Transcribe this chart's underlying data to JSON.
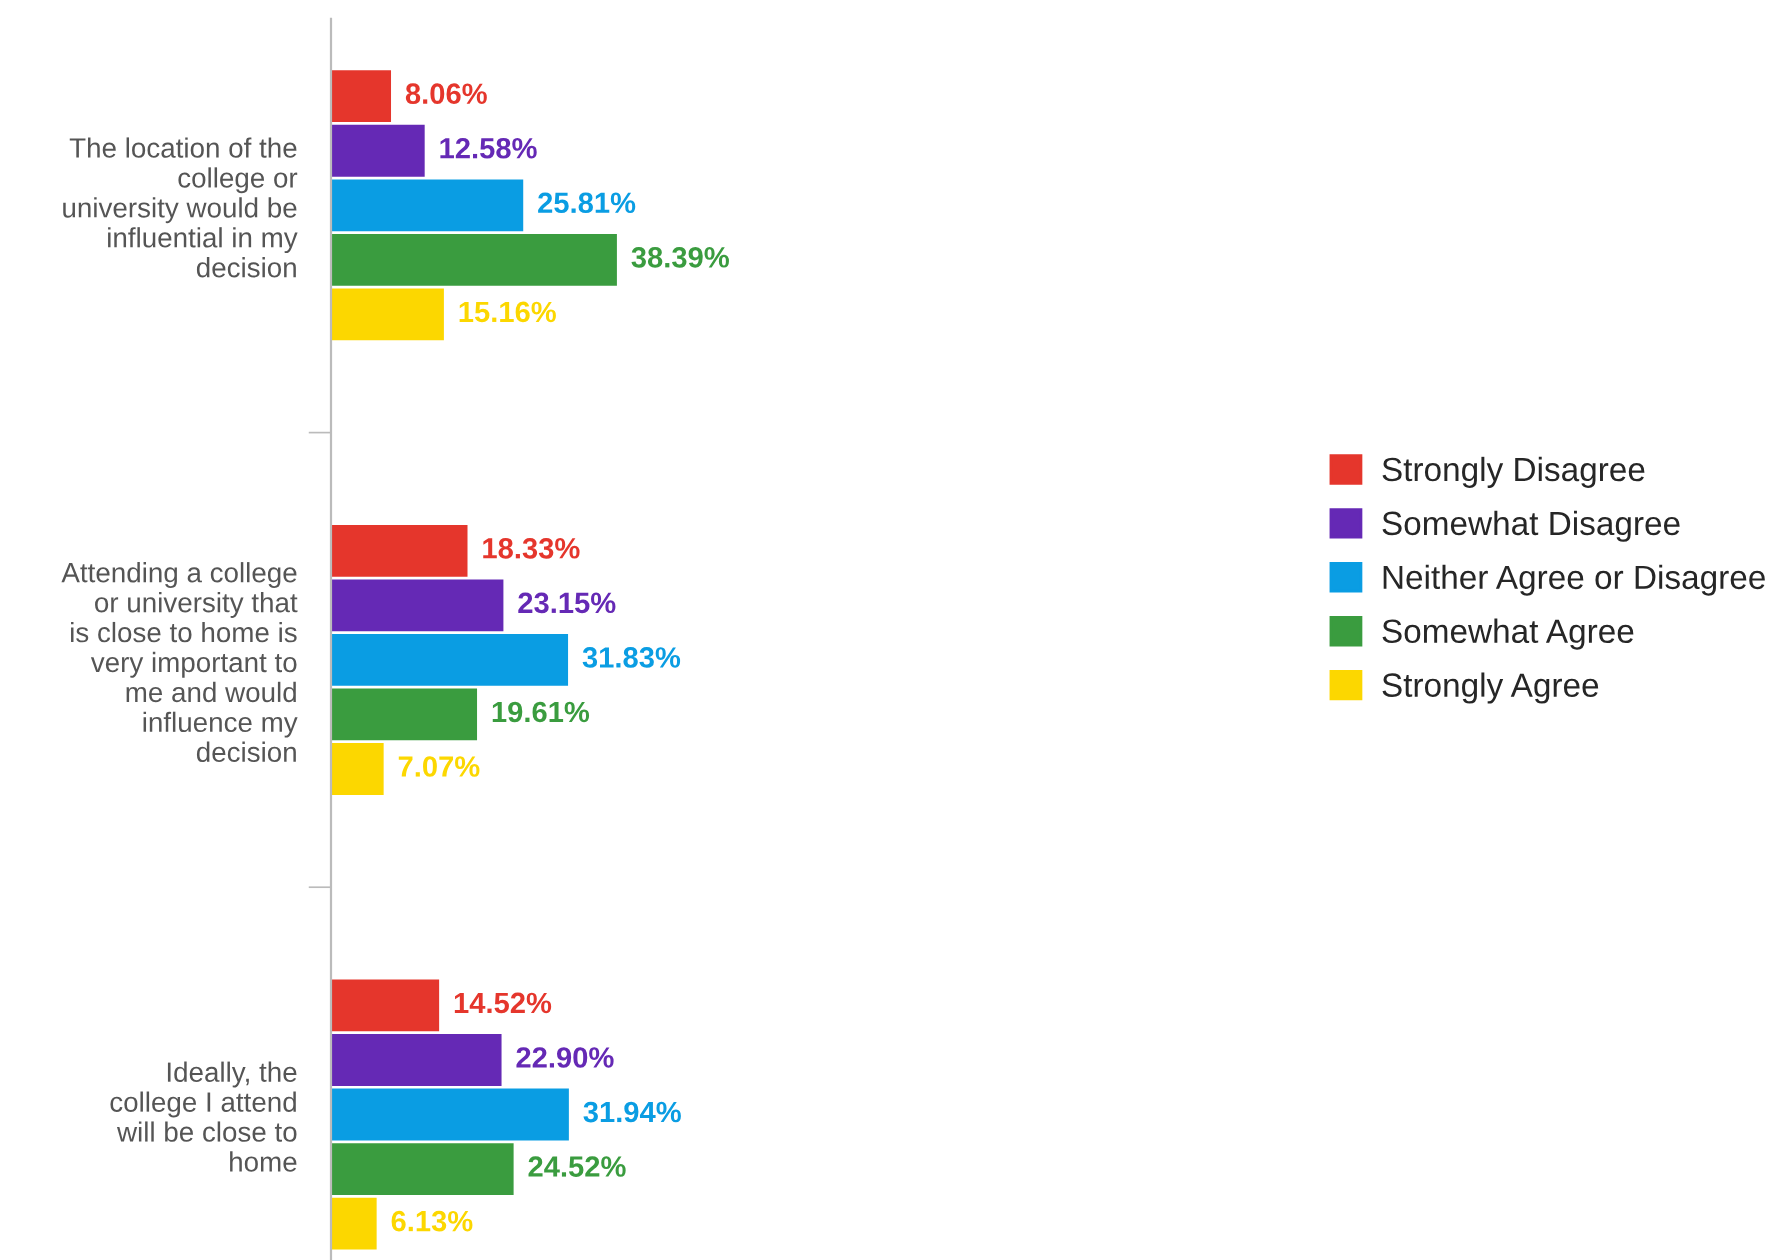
{
  "chart_data": {
    "type": "bar",
    "orientation": "horizontal",
    "categories": [
      "The location of the\ncollege or\nuniversity would be\ninfluential in my\ndecision",
      "Attending a college\nor university that\nis close to home is\nvery important to\nme and would\ninfluence my\ndecision",
      "Ideally, the\ncollege I attend\nwill be close to\nhome"
    ],
    "series": [
      {
        "name": "Strongly Disagree",
        "color": "#e5362c",
        "values": [
          8.06,
          18.33,
          14.52
        ],
        "value_labels": [
          "8.06%",
          "18.33%",
          "14.52%"
        ]
      },
      {
        "name": "Somewhat Disagree",
        "color": "#6529b5",
        "values": [
          12.58,
          23.15,
          22.9
        ],
        "value_labels": [
          "12.58%",
          "23.15%",
          "22.90%"
        ]
      },
      {
        "name": "Neither Agree or Disagree",
        "color": "#0a9de3",
        "values": [
          25.81,
          31.83,
          31.94
        ],
        "value_labels": [
          "25.81%",
          "31.83%",
          "31.94%"
        ]
      },
      {
        "name": "Somewhat Agree",
        "color": "#3a9c3f",
        "values": [
          38.39,
          19.61,
          24.52
        ],
        "value_labels": [
          "38.39%",
          "19.61%",
          "24.52%"
        ]
      },
      {
        "name": "Strongly Agree",
        "color": "#fcd700",
        "values": [
          15.16,
          7.07,
          6.13
        ],
        "value_labels": [
          "15.16%",
          "7.07%",
          "6.13%"
        ]
      }
    ],
    "legend": "right",
    "grid": false,
    "tick_labels": "y"
  }
}
